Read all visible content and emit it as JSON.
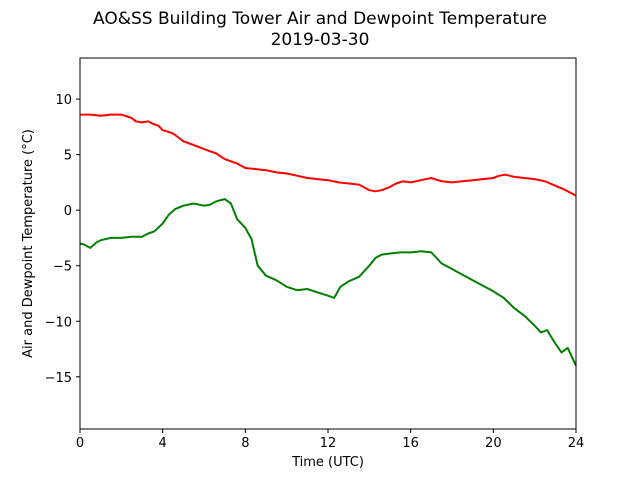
{
  "chart_data": {
    "type": "line",
    "title": "AO&SS Building Tower Air and Dewpoint Temperature",
    "subtitle": "2019-03-30",
    "xlabel": "Time (UTC)",
    "ylabel": "Air and Dewpoint Temperature (°C)",
    "xlim": [
      0,
      24
    ],
    "ylim": [
      -19.7,
      13.7
    ],
    "xticks": [
      0,
      4,
      8,
      12,
      16,
      20,
      24
    ],
    "yticks": [
      -15,
      -10,
      -5,
      0,
      5,
      10
    ],
    "grid": false,
    "series": [
      {
        "color": "#ff0000",
        "x": [
          0,
          0.5,
          1,
          1.5,
          2,
          2.5,
          2.7,
          3,
          3.3,
          3.5,
          3.8,
          4,
          4.2,
          4.5,
          4.8,
          5,
          5.3,
          5.6,
          6,
          6.3,
          6.6,
          7,
          7.3,
          7.6,
          8,
          8.5,
          9,
          9.5,
          10,
          10.5,
          11,
          11.5,
          12,
          12.5,
          13,
          13.5,
          14,
          14.3,
          14.6,
          15,
          15.3,
          15.6,
          16,
          16.5,
          17,
          17.5,
          18,
          18.5,
          19,
          19.5,
          20,
          20.3,
          20.6,
          21,
          21.5,
          22,
          22.5,
          23,
          23.5,
          24
        ],
        "values": [
          8.6,
          8.6,
          8.5,
          8.6,
          8.6,
          8.3,
          8.0,
          7.9,
          8.0,
          7.8,
          7.6,
          7.2,
          7.1,
          6.9,
          6.5,
          6.2,
          6.0,
          5.8,
          5.5,
          5.3,
          5.1,
          4.6,
          4.4,
          4.2,
          3.8,
          3.7,
          3.6,
          3.4,
          3.3,
          3.1,
          2.9,
          2.8,
          2.7,
          2.5,
          2.4,
          2.3,
          1.8,
          1.7,
          1.8,
          2.1,
          2.4,
          2.6,
          2.5,
          2.7,
          2.9,
          2.6,
          2.5,
          2.6,
          2.7,
          2.8,
          2.9,
          3.1,
          3.2,
          3.0,
          2.9,
          2.8,
          2.6,
          2.2,
          1.8,
          1.3
        ]
      },
      {
        "color": "#008000",
        "x": [
          0,
          0.2,
          0.5,
          0.8,
          1,
          1.5,
          2,
          2.5,
          3,
          3.3,
          3.6,
          4,
          4.3,
          4.6,
          5,
          5.5,
          6,
          6.3,
          6.6,
          7,
          7.3,
          7.6,
          8,
          8.3,
          8.6,
          9,
          9.5,
          10,
          10.5,
          11,
          11.5,
          12,
          12.3,
          12.6,
          13,
          13.5,
          14,
          14.3,
          14.6,
          15,
          15.5,
          16,
          16.5,
          17,
          17.5,
          18,
          18.5,
          19,
          19.5,
          20,
          20.5,
          21,
          21.5,
          22,
          22.3,
          22.6,
          23,
          23.3,
          23.6,
          24
        ],
        "values": [
          -3.0,
          -3.1,
          -3.4,
          -2.9,
          -2.7,
          -2.5,
          -2.5,
          -2.4,
          -2.4,
          -2.1,
          -1.9,
          -1.2,
          -0.4,
          0.1,
          0.4,
          0.6,
          0.4,
          0.5,
          0.8,
          1.0,
          0.6,
          -0.8,
          -1.6,
          -2.6,
          -5.0,
          -5.9,
          -6.3,
          -6.9,
          -7.2,
          -7.1,
          -7.4,
          -7.7,
          -7.9,
          -6.9,
          -6.4,
          -6.0,
          -5.0,
          -4.3,
          -4.0,
          -3.9,
          -3.8,
          -3.8,
          -3.7,
          -3.8,
          -4.8,
          -5.3,
          -5.8,
          -6.3,
          -6.8,
          -7.3,
          -7.9,
          -8.8,
          -9.5,
          -10.4,
          -11.0,
          -10.8,
          -12.0,
          -12.8,
          -12.4,
          -14.0
        ]
      }
    ]
  }
}
